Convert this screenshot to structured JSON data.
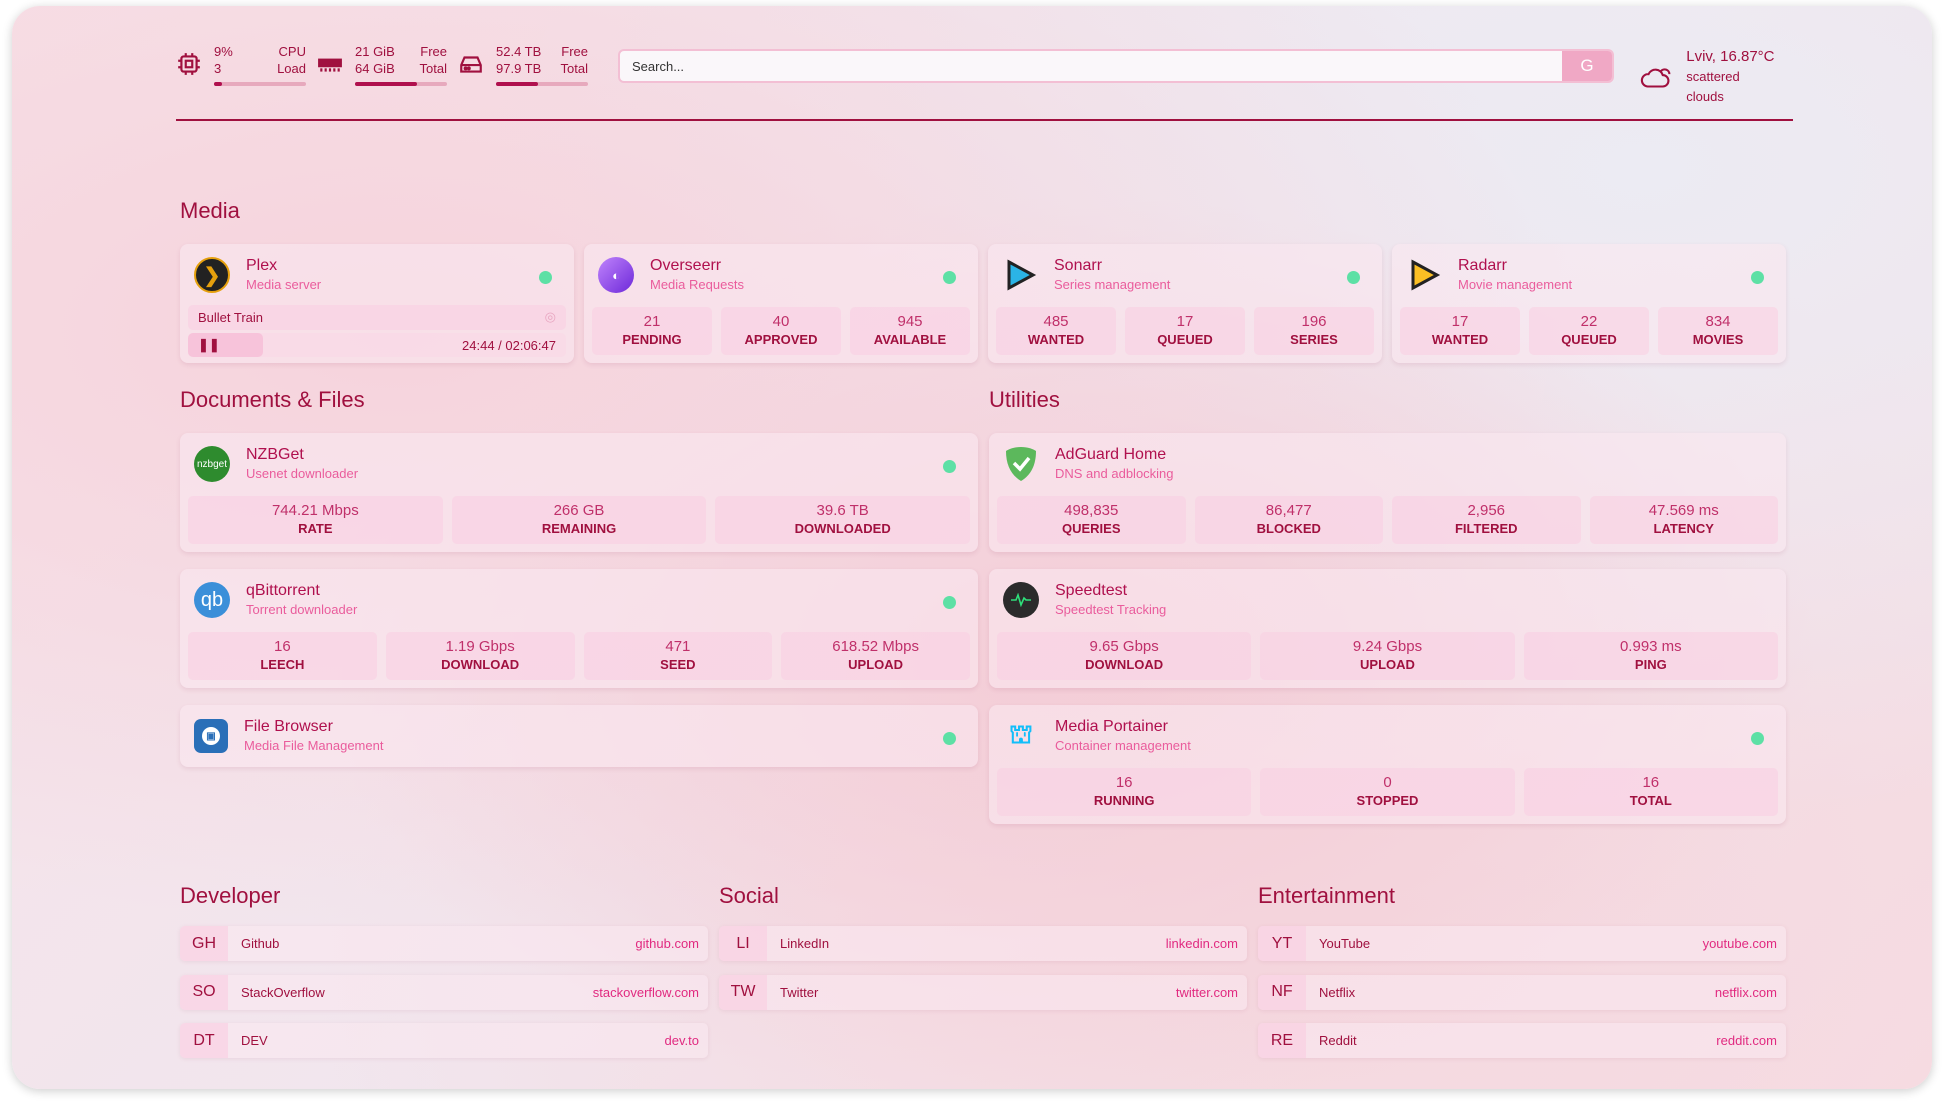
{
  "header": {
    "cpu": {
      "top": "9%",
      "top_label": "CPU",
      "bottom": "3",
      "bottom_label": "Load",
      "percent": 9
    },
    "memory": {
      "top": "21 GiB",
      "top_label": "Free",
      "bottom": "64 GiB",
      "bottom_label": "Total",
      "percent": 67
    },
    "disk": {
      "top": "52.4 TB",
      "top_label": "Free",
      "bottom": "97.9 TB",
      "bottom_label": "Total",
      "percent": 46
    },
    "search": {
      "placeholder": "Search...",
      "engine_button": "G"
    },
    "weather": {
      "location_temp": "Lviv, 16.87°C",
      "condition": "scattered clouds"
    }
  },
  "sections": {
    "media": "Media",
    "documents": "Documents & Files",
    "utilities": "Utilities",
    "developer": "Developer",
    "social": "Social",
    "entertainment": "Entertainment"
  },
  "media": [
    {
      "name": "Plex",
      "desc": "Media server",
      "now_playing": {
        "title": "Bullet Train",
        "time": "24:44 / 02:06:47"
      }
    },
    {
      "name": "Overseerr",
      "desc": "Media Requests",
      "stats": [
        {
          "v": "21",
          "l": "PENDING"
        },
        {
          "v": "40",
          "l": "APPROVED"
        },
        {
          "v": "945",
          "l": "AVAILABLE"
        }
      ]
    },
    {
      "name": "Sonarr",
      "desc": "Series management",
      "stats": [
        {
          "v": "485",
          "l": "WANTED"
        },
        {
          "v": "17",
          "l": "QUEUED"
        },
        {
          "v": "196",
          "l": "SERIES"
        }
      ]
    },
    {
      "name": "Radarr",
      "desc": "Movie management",
      "stats": [
        {
          "v": "17",
          "l": "WANTED"
        },
        {
          "v": "22",
          "l": "QUEUED"
        },
        {
          "v": "834",
          "l": "MOVIES"
        }
      ]
    }
  ],
  "documents": [
    {
      "name": "NZBGet",
      "desc": "Usenet downloader",
      "logo": "nzbget",
      "stats": [
        {
          "v": "744.21 Mbps",
          "l": "RATE"
        },
        {
          "v": "266 GB",
          "l": "REMAINING"
        },
        {
          "v": "39.6 TB",
          "l": "DOWNLOADED"
        }
      ]
    },
    {
      "name": "qBittorrent",
      "desc": "Torrent downloader",
      "logo": "qb",
      "stats": [
        {
          "v": "16",
          "l": "LEECH"
        },
        {
          "v": "1.19 Gbps",
          "l": "DOWNLOAD"
        },
        {
          "v": "471",
          "l": "SEED"
        },
        {
          "v": "618.52 Mbps",
          "l": "UPLOAD"
        }
      ]
    },
    {
      "name": "File Browser",
      "desc": "Media File Management"
    }
  ],
  "utilities": [
    {
      "name": "AdGuard Home",
      "desc": "DNS and adblocking",
      "stats": [
        {
          "v": "498,835",
          "l": "QUERIES"
        },
        {
          "v": "86,477",
          "l": "BLOCKED"
        },
        {
          "v": "2,956",
          "l": "FILTERED"
        },
        {
          "v": "47.569 ms",
          "l": "LATENCY"
        }
      ]
    },
    {
      "name": "Speedtest",
      "desc": "Speedtest Tracking",
      "stats": [
        {
          "v": "9.65 Gbps",
          "l": "DOWNLOAD"
        },
        {
          "v": "9.24 Gbps",
          "l": "UPLOAD"
        },
        {
          "v": "0.993 ms",
          "l": "PING"
        }
      ]
    },
    {
      "name": "Media Portainer",
      "desc": "Container management",
      "stats": [
        {
          "v": "16",
          "l": "RUNNING"
        },
        {
          "v": "0",
          "l": "STOPPED"
        },
        {
          "v": "16",
          "l": "TOTAL"
        }
      ]
    }
  ],
  "bookmarks": {
    "developer": [
      {
        "abbr": "GH",
        "name": "Github",
        "url": "github.com"
      },
      {
        "abbr": "SO",
        "name": "StackOverflow",
        "url": "stackoverflow.com"
      },
      {
        "abbr": "DT",
        "name": "DEV",
        "url": "dev.to"
      }
    ],
    "social": [
      {
        "abbr": "LI",
        "name": "LinkedIn",
        "url": "linkedin.com"
      },
      {
        "abbr": "TW",
        "name": "Twitter",
        "url": "twitter.com"
      }
    ],
    "entertainment": [
      {
        "abbr": "YT",
        "name": "YouTube",
        "url": "youtube.com"
      },
      {
        "abbr": "NF",
        "name": "Netflix",
        "url": "netflix.com"
      },
      {
        "abbr": "RE",
        "name": "Reddit",
        "url": "reddit.com"
      }
    ]
  },
  "colors": {
    "accent": "#b0104e",
    "subtitle": "#e9559a",
    "status_ok": "#5de0a5"
  }
}
